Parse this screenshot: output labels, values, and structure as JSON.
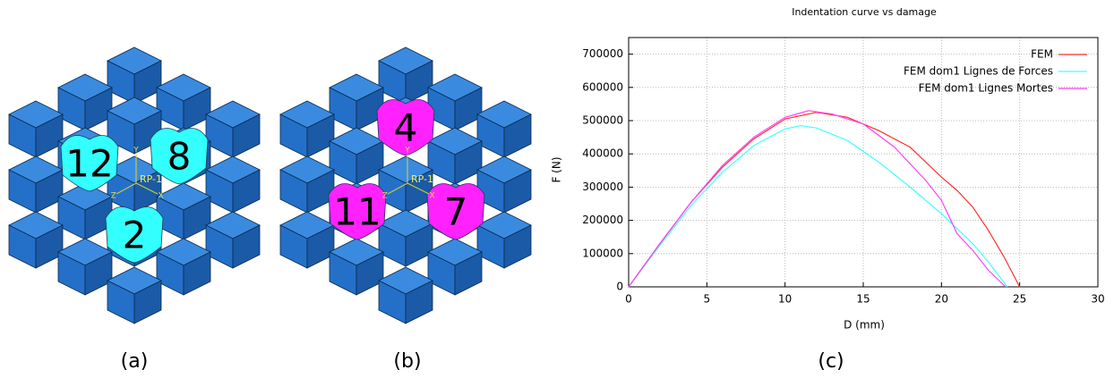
{
  "captions": [
    "(a)",
    "(b)",
    "(c)"
  ],
  "panels": [
    {
      "regions": [
        "12",
        "8",
        "2"
      ],
      "color": "#33ffff",
      "marker": "RP-1",
      "axes": [
        "Y",
        "Z",
        "X"
      ]
    },
    {
      "regions": [
        "4",
        "11",
        "7"
      ],
      "color": "#ff22ff",
      "marker": "RP-1",
      "axes": [
        "Y",
        "Z",
        "X"
      ]
    }
  ],
  "chart_data": {
    "type": "line",
    "title": "Indentation curve vs damage",
    "x_label": "D (mm)",
    "y_label": "F (N)",
    "xlim": [
      0,
      30
    ],
    "xticks": [
      0,
      5,
      10,
      15,
      20,
      25,
      30
    ],
    "ylim": [
      0,
      750000
    ],
    "yticks": [
      0,
      100000,
      200000,
      300000,
      400000,
      500000,
      600000,
      700000
    ],
    "grid": true,
    "legend": "top-right",
    "series": [
      {
        "name": "FEM",
        "color": "#ff3030",
        "x": [
          0,
          2,
          4,
          6,
          8,
          10,
          12,
          14,
          16,
          18,
          20,
          21,
          22,
          23,
          24,
          25
        ],
        "values": [
          0,
          130000,
          255000,
          360000,
          445000,
          505000,
          525000,
          510000,
          470000,
          420000,
          330000,
          290000,
          240000,
          170000,
          90000,
          0
        ]
      },
      {
        "name": "FEM dom1 Lignes de Forces",
        "color": "#40ffff",
        "x": [
          0,
          2,
          4,
          6,
          8,
          10,
          11,
          12,
          14,
          16,
          18,
          20,
          22,
          23,
          24.2
        ],
        "values": [
          0,
          125000,
          245000,
          345000,
          425000,
          475000,
          485000,
          478000,
          440000,
          375000,
          300000,
          220000,
          130000,
          75000,
          0
        ]
      },
      {
        "name": "FEM dom1 Lignes Mortes",
        "color": "#ff40ff",
        "x": [
          0,
          2,
          4,
          6,
          8,
          10,
          11.5,
          13,
          15,
          17,
          19,
          20,
          21,
          22,
          23,
          24.1
        ],
        "values": [
          0,
          130000,
          255000,
          365000,
          450000,
          510000,
          530000,
          520000,
          490000,
          420000,
          320000,
          260000,
          160000,
          110000,
          50000,
          0
        ]
      }
    ]
  }
}
